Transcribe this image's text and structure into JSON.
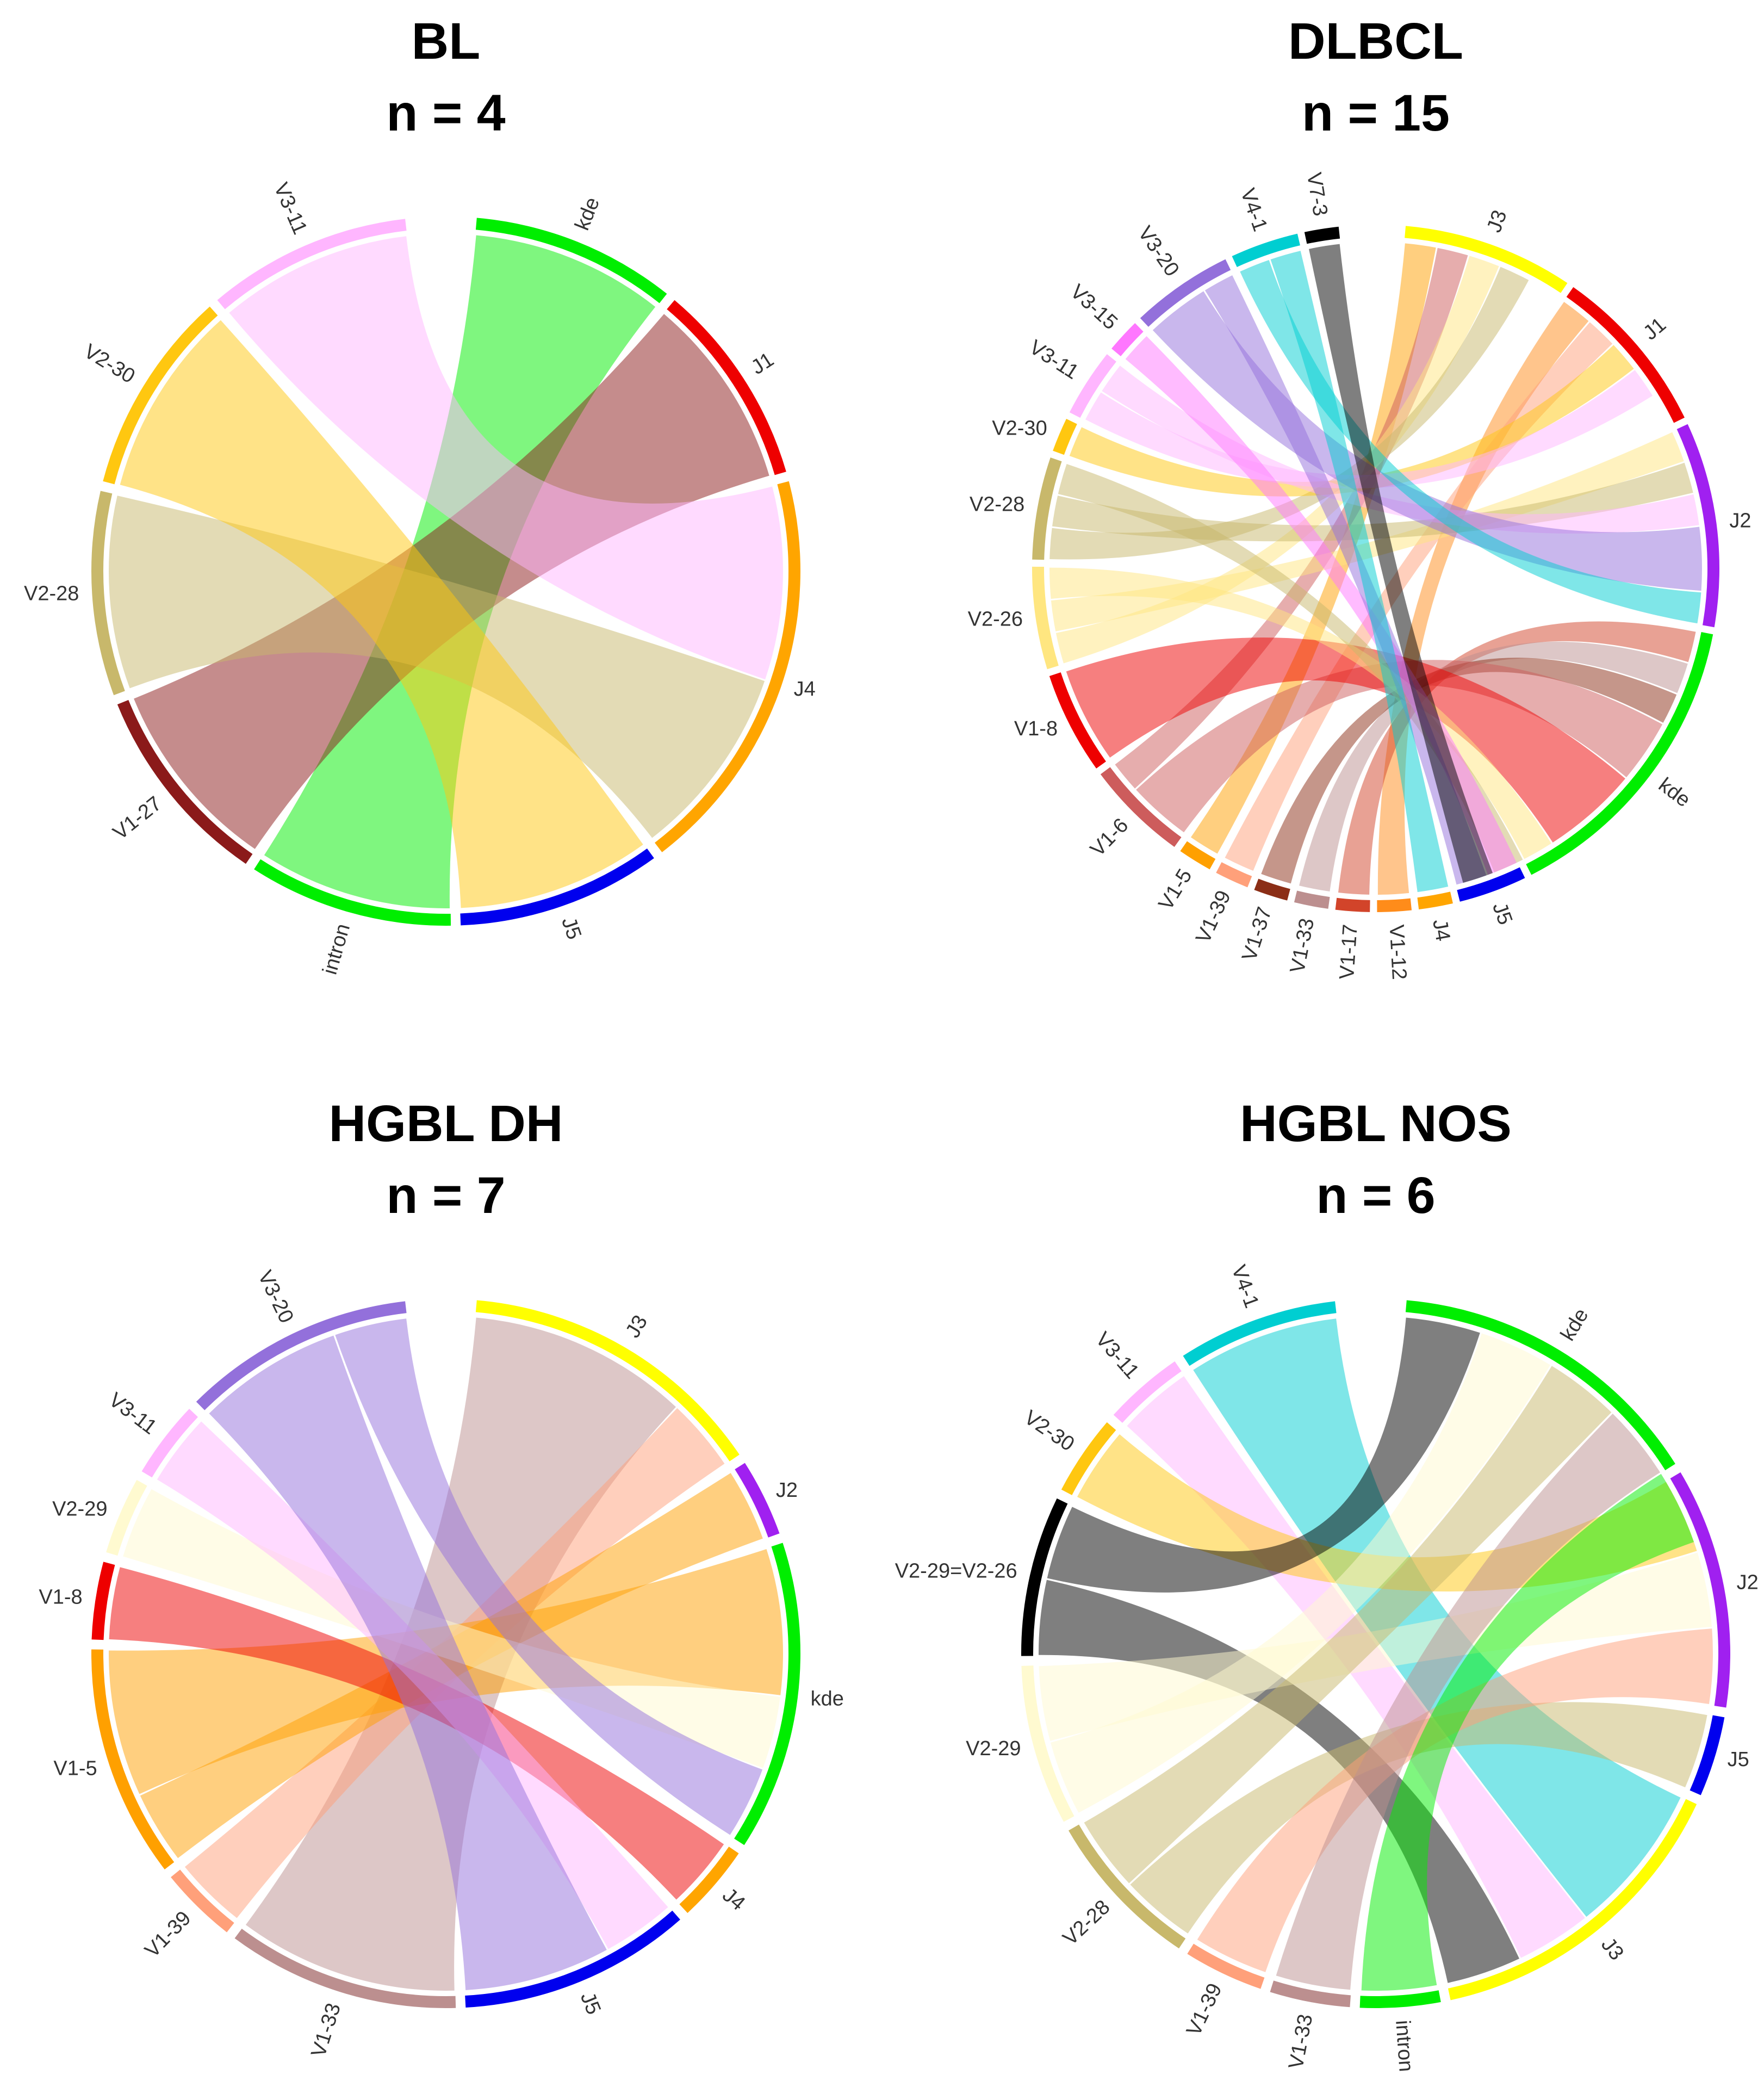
{
  "colors": {
    "kde": "#00EE00",
    "J1": "#EE0000",
    "J2": "#A020F0",
    "J3": "#FFFF00",
    "J4": "#FFA500",
    "J5": "#0000EE",
    "intron": "#00EE00",
    "V3-11": "#FFB6FF",
    "V2-30": "#FFC710",
    "V2-28": "#C8B86B",
    "V1-27": "#8B1A1A",
    "V7-3": "#000000",
    "V4-1": "#00CED1",
    "V3-20": "#9370DB",
    "V3-15": "#FF77FF",
    "V2-26": "#FFE680",
    "V1-8": "#EE0000",
    "V1-6": "#CD5C5C",
    "V1-5": "#FFA000",
    "V1-39": "#FFA07A",
    "V1-37": "#8B2E16",
    "V1-33": "#BC8F8F",
    "V1-17": "#D2442A",
    "V1-12": "#FF8C1A",
    "V2-29": "#FFFAD0",
    "V2-29=V2-26": "#000000"
  },
  "chart_data": [
    {
      "type": "chord",
      "title": "BL",
      "subtitle": "n = 4",
      "sectors": [
        {
          "name": "kde",
          "size": 1
        },
        {
          "name": "J1",
          "size": 1
        },
        {
          "name": "J4",
          "size": 2
        },
        {
          "name": "J5",
          "size": 1
        },
        {
          "name": "intron",
          "size": 1
        },
        {
          "name": "V1-27",
          "size": 1
        },
        {
          "name": "V2-28",
          "size": 1
        },
        {
          "name": "V2-30",
          "size": 1
        },
        {
          "name": "V3-11",
          "size": 1
        }
      ],
      "links": [
        {
          "from": "intron",
          "to": "kde",
          "value": 1
        },
        {
          "from": "V1-27",
          "to": "J1",
          "value": 1
        },
        {
          "from": "V3-11",
          "to": "J4",
          "value": 1
        },
        {
          "from": "V2-28",
          "to": "J4",
          "value": 1
        },
        {
          "from": "V2-30",
          "to": "J5",
          "value": 1
        }
      ]
    },
    {
      "type": "chord",
      "title": "DLBCL",
      "subtitle": "n = 15",
      "sectors": [
        {
          "name": "J3",
          "size": 5
        },
        {
          "name": "J1",
          "size": 5
        },
        {
          "name": "J2",
          "size": 6
        },
        {
          "name": "kde",
          "size": 9
        },
        {
          "name": "J5",
          "size": 2
        },
        {
          "name": "J4",
          "size": 1
        },
        {
          "name": "V1-12",
          "size": 1
        },
        {
          "name": "V1-17",
          "size": 1
        },
        {
          "name": "V1-33",
          "size": 1
        },
        {
          "name": "V1-37",
          "size": 1
        },
        {
          "name": "V1-39",
          "size": 1
        },
        {
          "name": "V1-5",
          "size": 1
        },
        {
          "name": "V1-6",
          "size": 3
        },
        {
          "name": "V1-8",
          "size": 3
        },
        {
          "name": "V2-26",
          "size": 3
        },
        {
          "name": "V2-28",
          "size": 3
        },
        {
          "name": "V2-30",
          "size": 1
        },
        {
          "name": "V3-11",
          "size": 2
        },
        {
          "name": "V3-15",
          "size": 1
        },
        {
          "name": "V3-20",
          "size": 3
        },
        {
          "name": "V4-1",
          "size": 2
        },
        {
          "name": "V7-3",
          "size": 1
        }
      ],
      "links": [
        {
          "from": "V1-12",
          "to": "J1",
          "value": 1
        },
        {
          "from": "V1-17",
          "to": "kde",
          "value": 1
        },
        {
          "from": "V1-33",
          "to": "kde",
          "value": 1
        },
        {
          "from": "V1-37",
          "to": "kde",
          "value": 1
        },
        {
          "from": "V1-39",
          "to": "J1",
          "value": 1
        },
        {
          "from": "V1-5",
          "to": "J3",
          "value": 1
        },
        {
          "from": "V1-6",
          "to": "kde",
          "value": 2
        },
        {
          "from": "V1-6",
          "to": "J3",
          "value": 1
        },
        {
          "from": "V1-8",
          "to": "kde",
          "value": 3
        },
        {
          "from": "V2-26",
          "to": "J3",
          "value": 1
        },
        {
          "from": "V2-26",
          "to": "J2",
          "value": 1
        },
        {
          "from": "V2-26",
          "to": "kde",
          "value": 1
        },
        {
          "from": "V2-28",
          "to": "J3",
          "value": 1
        },
        {
          "from": "V2-28",
          "to": "J2",
          "value": 1
        },
        {
          "from": "V2-28",
          "to": "kde",
          "value": 1
        },
        {
          "from": "V2-30",
          "to": "J1",
          "value": 1
        },
        {
          "from": "V3-11",
          "to": "J1",
          "value": 1
        },
        {
          "from": "V3-11",
          "to": "J2",
          "value": 1
        },
        {
          "from": "V3-15",
          "to": "J5",
          "value": 1
        },
        {
          "from": "V3-20",
          "to": "J2",
          "value": 2
        },
        {
          "from": "V3-20",
          "to": "J5",
          "value": 1
        },
        {
          "from": "V4-1",
          "to": "J2",
          "value": 1
        },
        {
          "from": "V4-1",
          "to": "J4",
          "value": 1
        },
        {
          "from": "V7-3",
          "to": "kde",
          "value": 1
        }
      ]
    },
    {
      "type": "chord",
      "title": "HGBL DH",
      "subtitle": "n = 7",
      "sectors": [
        {
          "name": "J3",
          "size": 4
        },
        {
          "name": "J2",
          "size": 1
        },
        {
          "name": "kde",
          "size": 4
        },
        {
          "name": "J4",
          "size": 1
        },
        {
          "name": "J5",
          "size": 3
        },
        {
          "name": "V1-33",
          "size": 3
        },
        {
          "name": "V1-39",
          "size": 1
        },
        {
          "name": "V1-5",
          "size": 3
        },
        {
          "name": "V1-8",
          "size": 1
        },
        {
          "name": "V2-29",
          "size": 1
        },
        {
          "name": "V3-11",
          "size": 1
        },
        {
          "name": "V3-20",
          "size": 3
        }
      ],
      "links": [
        {
          "from": "V1-33",
          "to": "J3",
          "value": 3
        },
        {
          "from": "V1-39",
          "to": "J3",
          "value": 1
        },
        {
          "from": "V1-5",
          "to": "J2",
          "value": 1
        },
        {
          "from": "V1-5",
          "to": "kde",
          "value": 2
        },
        {
          "from": "V1-8",
          "to": "J4",
          "value": 1
        },
        {
          "from": "V2-29",
          "to": "kde",
          "value": 1
        },
        {
          "from": "V3-11",
          "to": "J5",
          "value": 1
        },
        {
          "from": "V3-20",
          "to": "J5",
          "value": 2
        },
        {
          "from": "V3-20",
          "to": "kde",
          "value": 1
        }
      ]
    },
    {
      "type": "chord",
      "title": "HGBL NOS",
      "subtitle": "n = 6",
      "sectors": [
        {
          "name": "kde",
          "size": 4
        },
        {
          "name": "J2",
          "size": 3
        },
        {
          "name": "J5",
          "size": 1
        },
        {
          "name": "J3",
          "size": 4
        },
        {
          "name": "intron",
          "size": 1
        },
        {
          "name": "V1-33",
          "size": 1
        },
        {
          "name": "V1-39",
          "size": 1
        },
        {
          "name": "V2-28",
          "size": 2
        },
        {
          "name": "V2-29",
          "size": 2
        },
        {
          "name": "V2-29=V2-26",
          "size": 2
        },
        {
          "name": "V2-30",
          "size": 1
        },
        {
          "name": "V3-11",
          "size": 1
        },
        {
          "name": "V4-1",
          "size": 2
        }
      ],
      "links": [
        {
          "from": "V4-1",
          "to": "J3",
          "value": 2
        },
        {
          "from": "V3-11",
          "to": "J3",
          "value": 1
        },
        {
          "from": "V2-30",
          "to": "J2",
          "value": 1
        },
        {
          "from": "V2-29=V2-26",
          "to": "J3",
          "value": 1
        },
        {
          "from": "V2-29=V2-26",
          "to": "kde",
          "value": 1
        },
        {
          "from": "V2-29",
          "to": "kde",
          "value": 1
        },
        {
          "from": "V2-29",
          "to": "J2",
          "value": 1
        },
        {
          "from": "V2-28",
          "to": "J5",
          "value": 1
        },
        {
          "from": "V2-28",
          "to": "kde",
          "value": 1
        },
        {
          "from": "V1-39",
          "to": "J2",
          "value": 1
        },
        {
          "from": "V1-33",
          "to": "kde",
          "value": 1
        },
        {
          "from": "intron",
          "to": "kde",
          "value": 1
        }
      ]
    }
  ]
}
